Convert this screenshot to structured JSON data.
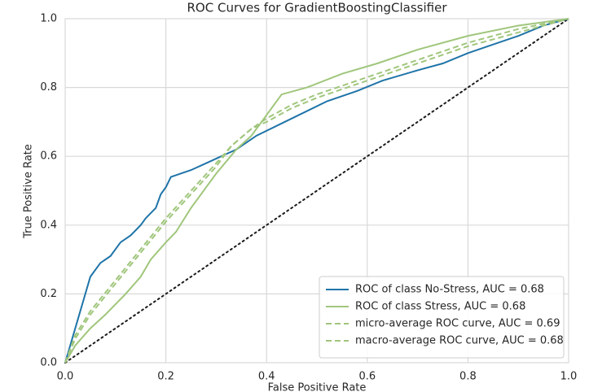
{
  "chart_data": {
    "type": "line",
    "title": "ROC Curves for GradientBoostingClassifier",
    "x_label": "False Positive Rate",
    "y_label": "True Positive Rate",
    "xlim": [
      0,
      1
    ],
    "ylim": [
      0,
      1
    ],
    "xticks": [
      {
        "value": 0,
        "label": "0.0"
      },
      0.2,
      0.4,
      0.6,
      0.8,
      {
        "value": 1,
        "label": "1.0"
      }
    ],
    "yticks": [
      {
        "value": 0,
        "label": "0.0"
      },
      0.2,
      0.4,
      0.6,
      0.8,
      {
        "value": 1,
        "label": "1.0"
      }
    ],
    "grid": true,
    "legend": "lower right",
    "series": [
      {
        "name": "ROC of class No-Stress, AUC = 0.68",
        "color": "#1f74a8",
        "dashed": false,
        "x": [
          0,
          0.01,
          0.02,
          0.03,
          0.04,
          0.05,
          0.07,
          0.09,
          0.11,
          0.13,
          0.15,
          0.16,
          0.18,
          0.19,
          0.2,
          0.21,
          0.23,
          0.25,
          0.28,
          0.31,
          0.34,
          0.38,
          0.45,
          0.52,
          0.58,
          0.63,
          0.7,
          0.75,
          0.8,
          0.86,
          0.9,
          0.95,
          1
        ],
        "values": [
          0,
          0.05,
          0.1,
          0.15,
          0.2,
          0.25,
          0.29,
          0.31,
          0.35,
          0.37,
          0.4,
          0.42,
          0.45,
          0.49,
          0.51,
          0.54,
          0.55,
          0.56,
          0.58,
          0.6,
          0.62,
          0.66,
          0.71,
          0.76,
          0.79,
          0.82,
          0.85,
          0.87,
          0.9,
          0.93,
          0.95,
          0.98,
          1
        ]
      },
      {
        "name": "ROC of class Stress, AUC = 0.68",
        "color": "#a0c67c",
        "dashed": false,
        "x": [
          0,
          0.02,
          0.05,
          0.08,
          0.12,
          0.15,
          0.17,
          0.2,
          0.22,
          0.25,
          0.3,
          0.34,
          0.37,
          0.4,
          0.43,
          0.48,
          0.55,
          0.62,
          0.7,
          0.8,
          0.9,
          1
        ],
        "values": [
          0,
          0.05,
          0.1,
          0.14,
          0.2,
          0.25,
          0.3,
          0.35,
          0.38,
          0.45,
          0.55,
          0.62,
          0.66,
          0.72,
          0.78,
          0.8,
          0.84,
          0.87,
          0.91,
          0.95,
          0.98,
          1
        ]
      },
      {
        "name": "micro-average ROC curve, AUC = 0.69",
        "color": "#a0c67c",
        "dashed": true,
        "x": [
          0,
          0.02,
          0.05,
          0.1,
          0.15,
          0.2,
          0.25,
          0.3,
          0.33,
          0.37,
          0.4,
          0.45,
          0.5,
          0.6,
          0.7,
          0.8,
          0.9,
          1
        ],
        "values": [
          0,
          0.08,
          0.15,
          0.24,
          0.33,
          0.42,
          0.5,
          0.58,
          0.63,
          0.68,
          0.71,
          0.75,
          0.78,
          0.83,
          0.88,
          0.93,
          0.97,
          1
        ]
      },
      {
        "name": "macro-average ROC curve, AUC = 0.68",
        "color": "#a0c67c",
        "dashed": true,
        "x": [
          0,
          0.02,
          0.05,
          0.1,
          0.15,
          0.2,
          0.25,
          0.3,
          0.33,
          0.37,
          0.4,
          0.45,
          0.5,
          0.6,
          0.7,
          0.8,
          0.9,
          1
        ],
        "values": [
          0,
          0.07,
          0.14,
          0.23,
          0.32,
          0.41,
          0.49,
          0.57,
          0.63,
          0.68,
          0.7,
          0.74,
          0.77,
          0.82,
          0.87,
          0.92,
          0.96,
          1
        ]
      }
    ]
  }
}
